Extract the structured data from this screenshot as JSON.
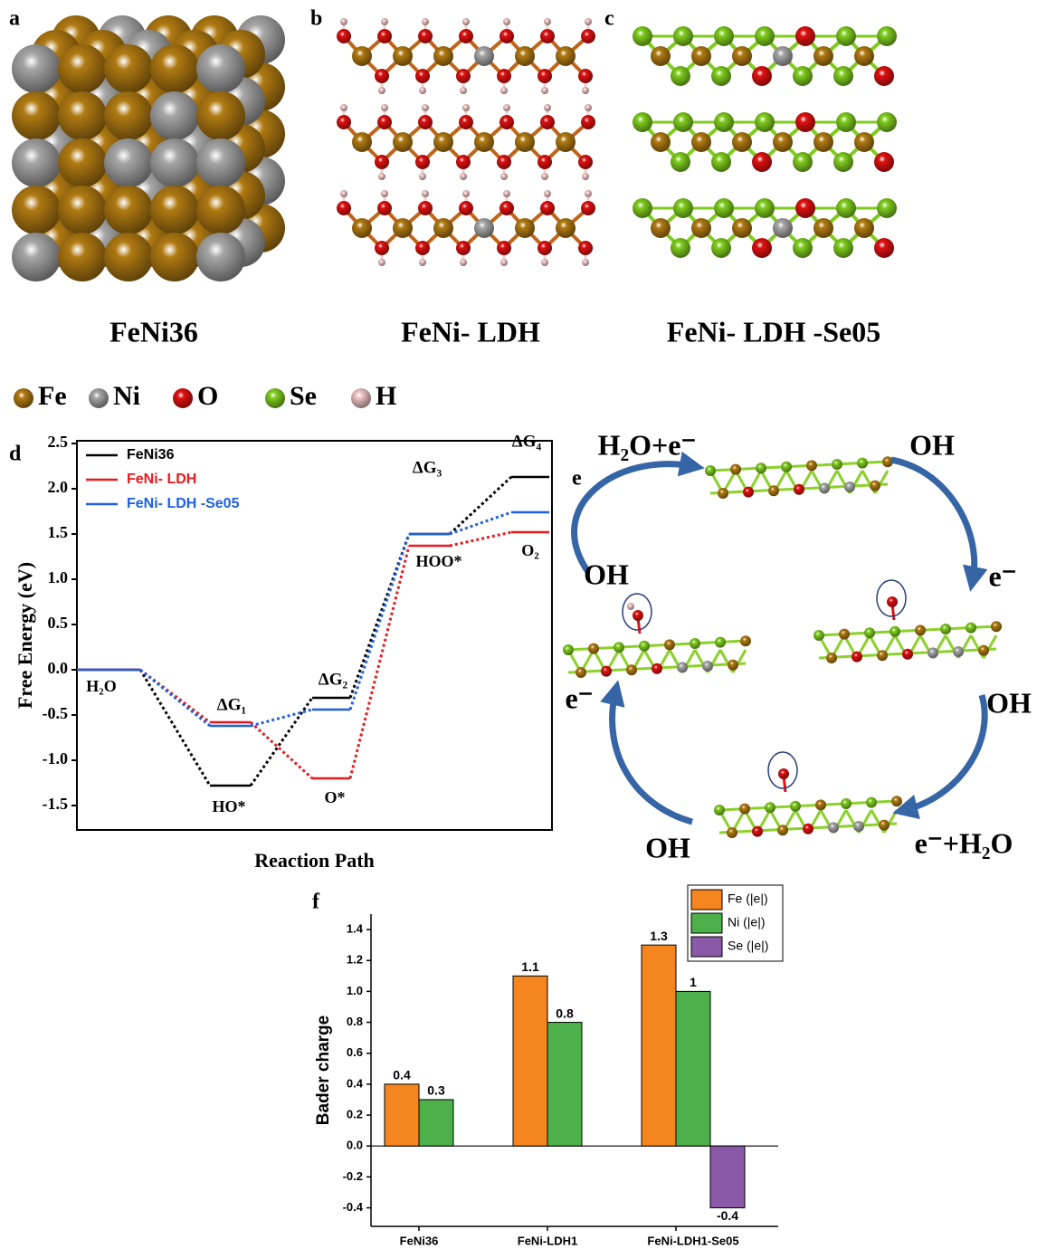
{
  "panels": [
    {
      "label": "a",
      "caption": "FeNi36"
    },
    {
      "label": "b",
      "caption": "FeNi- LDH"
    },
    {
      "label": "c",
      "caption": "FeNi- LDH -Se05"
    }
  ],
  "atom_legend": [
    {
      "name": "Fe",
      "color": "#b07a12"
    },
    {
      "name": "Ni",
      "color": "#a6a6a6"
    },
    {
      "name": "O",
      "color": "#e01010"
    },
    {
      "name": "Se",
      "color": "#7fcc1e"
    },
    {
      "name": "H",
      "color": "#efc4c4"
    }
  ],
  "chart_data": [
    {
      "type": "line",
      "panel_label": "d",
      "ylabel": "Free Energy (eV)",
      "xlabel": "Reaction Path",
      "categories": [
        "H₂O",
        "HO*",
        "O*",
        "HOO*",
        "O₂"
      ],
      "step_labels": [
        "ΔG₁",
        "ΔG₂",
        "ΔG₃",
        "ΔG₄"
      ],
      "series": [
        {
          "name": "FeNi36",
          "color": "#000000",
          "values": [
            0,
            -1.28,
            -0.31,
            1.5,
            2.13
          ]
        },
        {
          "name": "FeNi- LDH",
          "color": "#e8191c",
          "values": [
            0,
            -0.58,
            -1.2,
            1.37,
            1.52
          ]
        },
        {
          "name": "FeNi- LDH -Se05",
          "color": "#1f5fe0",
          "values": [
            0,
            -0.62,
            -0.44,
            1.5,
            1.74
          ]
        }
      ],
      "ylim": [
        -1.77,
        2.53
      ],
      "yticks": [
        -1.5,
        {
          "value": -1,
          "label": "-1.0"
        },
        -0.5,
        {
          "value": 0,
          "label": "0.0"
        },
        0.5,
        {
          "value": 1,
          "label": "1.0"
        },
        1.5,
        {
          "value": 2,
          "label": "2.0"
        },
        2.5
      ],
      "legend": "top-left"
    },
    {
      "type": "bar",
      "panel_label": "f",
      "ylabel": "Bader charge",
      "categories": [
        "FeNi36",
        "FeNi-LDH1",
        "FeNi-LDH1-Se05"
      ],
      "series": [
        {
          "name": "Fe (|e|)",
          "color": "#f5851f",
          "values": [
            0.4,
            1.1,
            1.3
          ]
        },
        {
          "name": "Ni (|e|)",
          "color": "#4db04a",
          "values": [
            0.3,
            0.8,
            1
          ]
        },
        {
          "name": "Se (|e|)",
          "color": "#8a5aa8",
          "values": [
            null,
            null,
            -0.4
          ]
        }
      ],
      "ylim": [
        -0.52,
        1.5
      ],
      "yticks": [
        -0.4,
        -0.2,
        {
          "value": 0,
          "label": "0.0"
        },
        0.2,
        0.4,
        0.6,
        0.8,
        {
          "value": 1,
          "label": "1.0"
        },
        1.2,
        1.4
      ],
      "legend": "top-right"
    }
  ],
  "cycle": {
    "label": "e",
    "texts": [
      "H₂O+e⁻",
      "OH",
      "e⁻",
      "OH",
      "e⁻+H₂O",
      "OH",
      "e⁻",
      "OH"
    ]
  }
}
